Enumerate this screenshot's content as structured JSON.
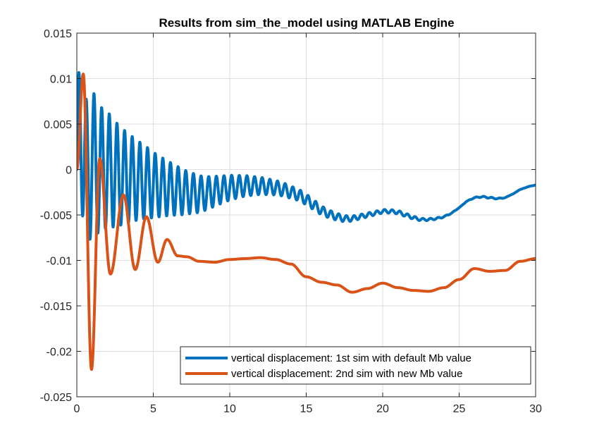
{
  "chart_data": {
    "type": "line",
    "title": "Results from sim_the_model using MATLAB Engine",
    "xlabel": "",
    "ylabel": "",
    "xlim": [
      0,
      30
    ],
    "ylim": [
      -0.025,
      0.015
    ],
    "grid": true,
    "legend_position": "bottom-right",
    "x_ticks": [
      0,
      5,
      10,
      15,
      20,
      25,
      30
    ],
    "x_tick_labels": [
      "0",
      "5",
      "10",
      "15",
      "20",
      "25",
      "30"
    ],
    "y_ticks": [
      0.015,
      0.01,
      0.005,
      0,
      -0.005,
      -0.01,
      -0.015,
      -0.02,
      -0.025
    ],
    "y_tick_labels": [
      "0.015",
      "0.01",
      "0.005",
      "0",
      "-0.005",
      "-0.01",
      "-0.015",
      "-0.02",
      "-0.025"
    ],
    "series": [
      {
        "name": "vertical displacement: 1st sim with default Mb value",
        "color": "#0072bd",
        "x": [
          0,
          0.3,
          0.7,
          1.0,
          1.5,
          2,
          2.5,
          3,
          3.5,
          4,
          4.5,
          5,
          5.5,
          6,
          6.5,
          7,
          7.5,
          8,
          8.5,
          9,
          9.5,
          10,
          10.5,
          11,
          11.5,
          12,
          12.5,
          13,
          13.5,
          14,
          14.5,
          15,
          15.5,
          16,
          16.5,
          17,
          17.5,
          18,
          18.5,
          19,
          19.5,
          20,
          20.5,
          21,
          21.5,
          22,
          22.5,
          23,
          23.5,
          24,
          24.5,
          25,
          25.5,
          26,
          26.5,
          27,
          27.5,
          28,
          28.5,
          29,
          29.5,
          30
        ],
        "values": [
          0.0,
          0.004,
          -0.001,
          0.001,
          0.0,
          0.0,
          -0.0005,
          -0.0008,
          -0.001,
          -0.0012,
          -0.0014,
          -0.0017,
          -0.0019,
          -0.0021,
          -0.0023,
          -0.0025,
          -0.0026,
          -0.0027,
          -0.0026,
          -0.0024,
          -0.0022,
          -0.002,
          -0.0019,
          -0.0018,
          -0.0018,
          -0.0018,
          -0.0019,
          -0.002,
          -0.0022,
          -0.0025,
          -0.0028,
          -0.0033,
          -0.0039,
          -0.0045,
          -0.0049,
          -0.0052,
          -0.0054,
          -0.0054,
          -0.0052,
          -0.005,
          -0.0048,
          -0.0046,
          -0.0046,
          -0.0047,
          -0.005,
          -0.0053,
          -0.0055,
          -0.0055,
          -0.0054,
          -0.0052,
          -0.0048,
          -0.0042,
          -0.0035,
          -0.0031,
          -0.003,
          -0.0031,
          -0.0032,
          -0.0031,
          -0.0027,
          -0.0022,
          -0.0019,
          -0.0017
        ],
        "oscillation": {
          "amplitude": 0.0093,
          "period": 0.5,
          "decay": 0.19
        }
      },
      {
        "name": "vertical displacement: 2nd sim with new Mb value",
        "color": "#d95319",
        "x": [
          0,
          0.42,
          0.96,
          1.5,
          2.2,
          3.05,
          3.82,
          4.55,
          5.3,
          5.9,
          6.6,
          7.2,
          8,
          9,
          10,
          11,
          12,
          13,
          14,
          15,
          16,
          17,
          18,
          19,
          20,
          21,
          22,
          23,
          24,
          25,
          26,
          27,
          28,
          29,
          30
        ],
        "values": [
          0.0,
          0.0105,
          -0.022,
          0.0012,
          -0.0115,
          -0.0028,
          -0.011,
          -0.0052,
          -0.0102,
          -0.0077,
          -0.0095,
          -0.0096,
          -0.0101,
          -0.0102,
          -0.0099,
          -0.0098,
          -0.0097,
          -0.0099,
          -0.0104,
          -0.0118,
          -0.0124,
          -0.0127,
          -0.0135,
          -0.0131,
          -0.0125,
          -0.013,
          -0.0133,
          -0.0134,
          -0.013,
          -0.0121,
          -0.0109,
          -0.0112,
          -0.0111,
          -0.0101,
          -0.0098
        ]
      }
    ]
  }
}
